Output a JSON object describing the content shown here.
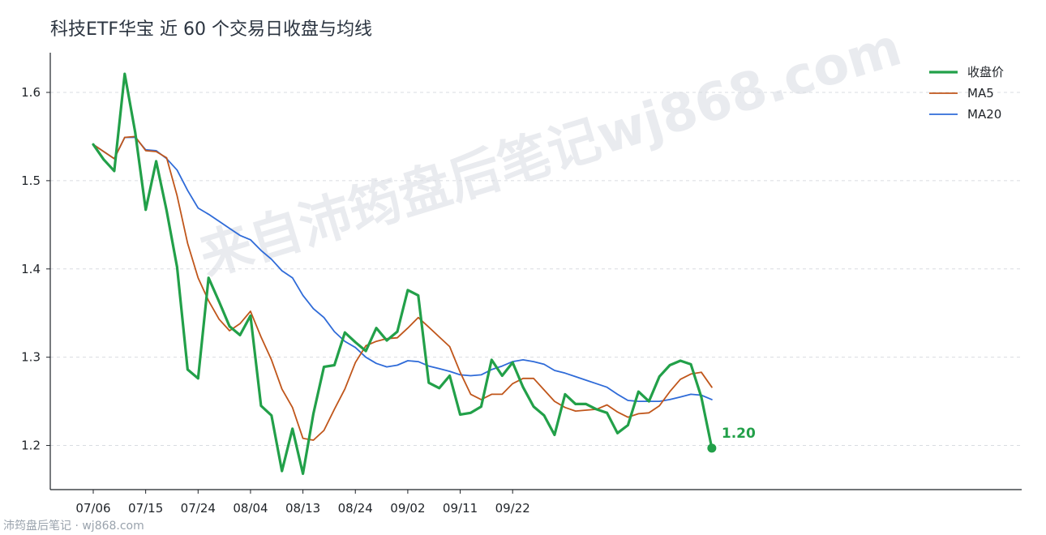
{
  "chart_data": {
    "type": "line",
    "title": "科技ETF华宝 近 60 个交易日收盘与均线",
    "xlabel": "",
    "ylabel": "",
    "ylim": [
      1.15,
      1.645
    ],
    "yticks": [
      "1.2",
      "1.3",
      "1.4",
      "1.5",
      "1.6"
    ],
    "xticks": [
      "07/06",
      "07/15",
      "07/24",
      "08/04",
      "08/13",
      "08/24",
      "09/02",
      "09/11",
      "09/22"
    ],
    "xtick_index": [
      0,
      5,
      10,
      15,
      20,
      25,
      30,
      35,
      40
    ],
    "grid": "horizontal dashed",
    "legend_position": "top-right",
    "series": [
      {
        "name": "收盘价",
        "color": "#22a049",
        "values": [
          1.541,
          1.524,
          1.511,
          1.621,
          1.555,
          1.467,
          1.522,
          1.466,
          1.402,
          1.286,
          1.276,
          1.39,
          1.363,
          1.335,
          1.325,
          1.347,
          1.245,
          1.234,
          1.171,
          1.219,
          1.168,
          1.236,
          1.289,
          1.291,
          1.328,
          1.317,
          1.307,
          1.333,
          1.319,
          1.329,
          1.376,
          1.37,
          1.271,
          1.265,
          1.279,
          1.235,
          1.237,
          1.244,
          1.297,
          1.279,
          1.294,
          1.266,
          1.244,
          1.234,
          1.212,
          1.258,
          1.247,
          1.247,
          1.241,
          1.237,
          1.214,
          1.223,
          1.261,
          1.25,
          1.278,
          1.291,
          1.296,
          1.292,
          1.255,
          1.197
        ]
      },
      {
        "name": "MA5",
        "color": "#c0561b",
        "values": [
          1.541,
          1.533,
          1.525,
          1.549,
          1.55,
          1.534,
          1.533,
          1.526,
          1.483,
          1.429,
          1.39,
          1.364,
          1.343,
          1.33,
          1.338,
          1.352,
          1.323,
          1.297,
          1.264,
          1.243,
          1.208,
          1.206,
          1.217,
          1.241,
          1.264,
          1.294,
          1.313,
          1.318,
          1.321,
          1.322,
          1.333,
          1.345,
          1.334,
          1.323,
          1.312,
          1.283,
          1.258,
          1.252,
          1.258,
          1.258,
          1.27,
          1.276,
          1.276,
          1.263,
          1.25,
          1.243,
          1.239,
          1.24,
          1.241,
          1.246,
          1.238,
          1.232,
          1.236,
          1.237,
          1.245,
          1.261,
          1.275,
          1.281,
          1.283,
          1.266
        ]
      },
      {
        "name": "MA20",
        "color": "#2f6bd8",
        "values": [
          1.541,
          1.533,
          1.525,
          1.549,
          1.549,
          1.535,
          1.534,
          1.525,
          1.512,
          1.489,
          1.469,
          1.462,
          1.454,
          1.446,
          1.438,
          1.433,
          1.421,
          1.411,
          1.398,
          1.39,
          1.37,
          1.355,
          1.345,
          1.329,
          1.318,
          1.311,
          1.3,
          1.293,
          1.289,
          1.291,
          1.296,
          1.295,
          1.29,
          1.287,
          1.284,
          1.28,
          1.279,
          1.28,
          1.286,
          1.29,
          1.295,
          1.297,
          1.295,
          1.292,
          1.285,
          1.282,
          1.278,
          1.274,
          1.27,
          1.266,
          1.258,
          1.251,
          1.25,
          1.25,
          1.25,
          1.252,
          1.255,
          1.258,
          1.257,
          1.252
        ]
      }
    ],
    "last_value_label": "1.20"
  },
  "watermark": "来自沛筠盘后笔记wj868.com",
  "footer": "沛筠盘后笔记 · wj868.com"
}
